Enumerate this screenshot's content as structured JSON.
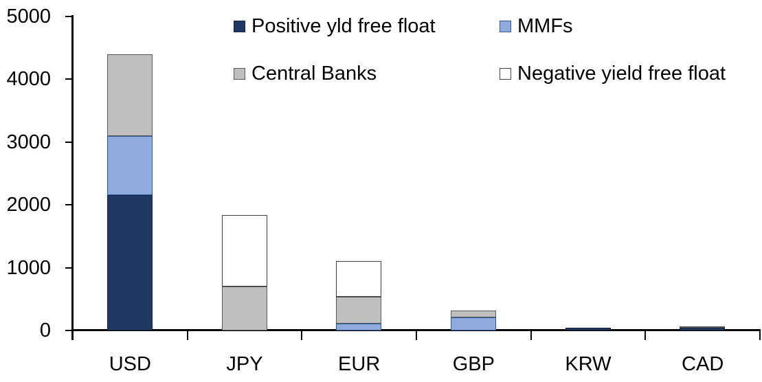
{
  "chart_data": {
    "type": "bar",
    "stacked": true,
    "title": "",
    "xlabel": "",
    "ylabel": "",
    "categories": [
      "USD",
      "JPY",
      "EUR",
      "GBP",
      "KRW",
      "CAD"
    ],
    "series": [
      {
        "name": "Positive yld free float",
        "color": "#1F3864",
        "border": "#16233F",
        "values": [
          2150,
          0,
          0,
          0,
          45,
          40
        ]
      },
      {
        "name": "MMFs",
        "color": "#8FAADC",
        "border": "#2E5B97",
        "values": [
          950,
          0,
          110,
          210,
          0,
          0
        ]
      },
      {
        "name": "Central Banks",
        "color": "#BFBFBF",
        "border": "#595959",
        "values": [
          1300,
          700,
          430,
          110,
          0,
          25
        ]
      },
      {
        "name": "Negative yield free float",
        "color": "#FFFFFF",
        "border": "#404040",
        "values": [
          0,
          1140,
          570,
          0,
          0,
          0
        ]
      }
    ],
    "totals": [
      4400,
      1840,
      1110,
      320,
      45,
      65
    ],
    "ylim": [
      0,
      5000
    ],
    "yticks": [
      0,
      1000,
      2000,
      3000,
      4000,
      5000
    ],
    "grid": false,
    "legend_position": "top",
    "axis_color": "#000000"
  }
}
